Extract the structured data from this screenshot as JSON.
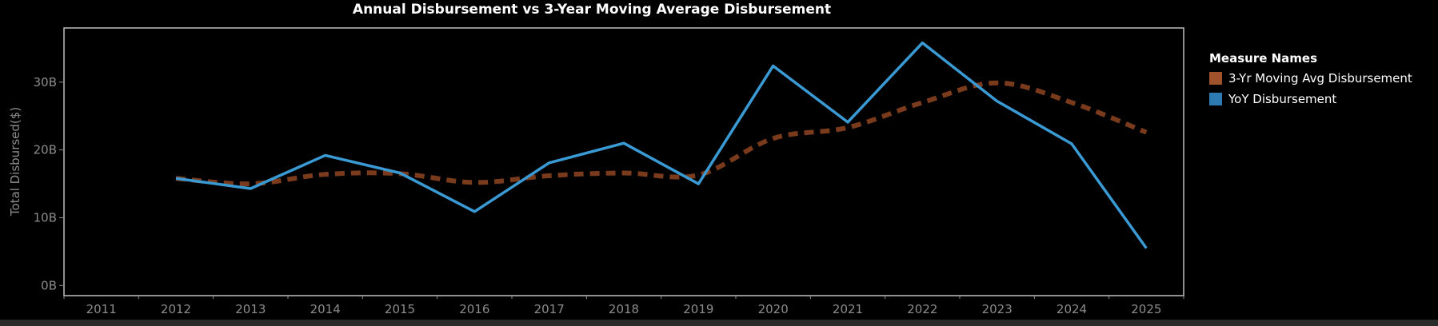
{
  "chart_data": {
    "type": "line",
    "title": "Annual Disbursement vs 3-Year Moving Average Disbursement",
    "xlabel": "",
    "ylabel": "Total Disbursed($)",
    "categories": [
      "2011",
      "2012",
      "2013",
      "2014",
      "2015",
      "2016",
      "2017",
      "2018",
      "2019",
      "2020",
      "2021",
      "2022",
      "2023",
      "2024",
      "2025"
    ],
    "y_ticks": [
      {
        "value": 0,
        "label": "0B"
      },
      {
        "value": 10,
        "label": "10B"
      },
      {
        "value": 20,
        "label": "20B"
      },
      {
        "value": 30,
        "label": "30B"
      }
    ],
    "y_unit": "billions",
    "ylim": [
      -1.5,
      38
    ],
    "grid": false,
    "series": [
      {
        "name": "YoY Disbursement",
        "color": "#3a9ad3",
        "style": "solid",
        "values": [
          null,
          15.8,
          14.3,
          19.2,
          16.6,
          10.9,
          18.1,
          21.0,
          15.0,
          32.4,
          24.1,
          35.8,
          27.2,
          20.9,
          5.5
        ]
      },
      {
        "name": "3-Yr Moving Avg Disbursement",
        "color": "#7a3a1c",
        "style": "dashed",
        "values": [
          null,
          15.8,
          15.0,
          16.4,
          16.5,
          15.2,
          16.2,
          16.6,
          16.3,
          21.7,
          23.3,
          27.0,
          29.9,
          27.0,
          22.6
        ]
      }
    ],
    "legend": {
      "title": "Measure Names",
      "placement": "right",
      "items": [
        {
          "label": "3-Yr Moving Avg Disbursement",
          "color": "#a0522d"
        },
        {
          "label": "YoY Disbursement",
          "color": "#2e7bb4"
        }
      ]
    }
  }
}
